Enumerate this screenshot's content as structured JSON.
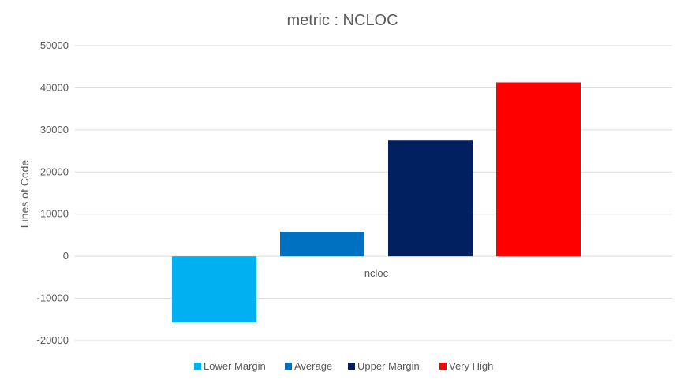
{
  "chart_data": {
    "type": "bar",
    "title": "metric : NCLOC",
    "xlabel": "",
    "ylabel": "Lines of Code",
    "categories": [
      "ncloc"
    ],
    "series": [
      {
        "name": "Lower Margin",
        "values": [
          -15700
        ],
        "color": "#00b0f0"
      },
      {
        "name": "Average",
        "values": [
          5800
        ],
        "color": "#0070c0"
      },
      {
        "name": "Upper Margin",
        "values": [
          27500
        ],
        "color": "#002060"
      },
      {
        "name": "Very High",
        "values": [
          41300
        ],
        "color": "#ff0000"
      }
    ],
    "ylim": [
      -20000,
      50000
    ],
    "yticks": [
      "-20000",
      "-10000",
      "0",
      "10000",
      "20000",
      "30000",
      "40000",
      "50000"
    ],
    "grid": true,
    "legend_position": "bottom"
  }
}
